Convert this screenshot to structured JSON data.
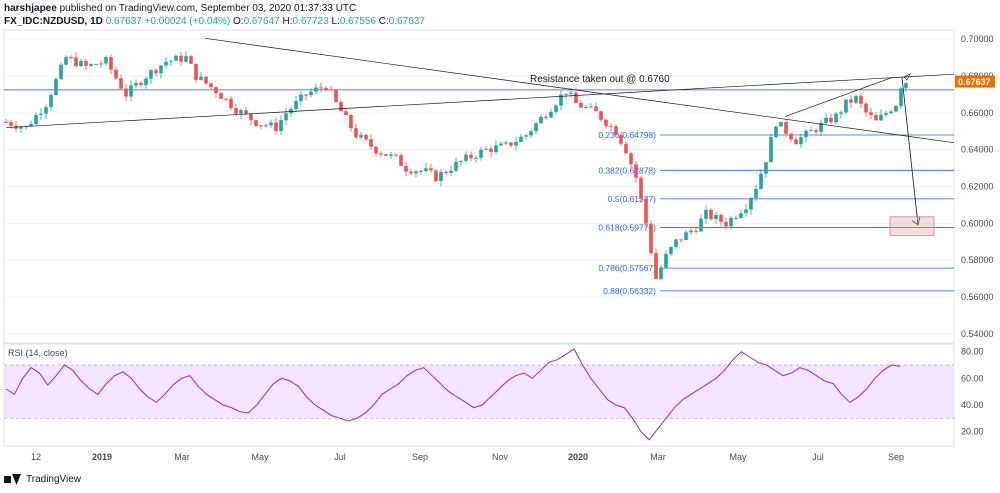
{
  "header": {
    "author": "harshjapee",
    "published_text": "published on TradingView.com, September 03, 2020 01:37:33 UTC",
    "symbol": "FX_IDC:NZDUSD, 1D",
    "last": "0.67637",
    "change": "+0.00024 (+0.04%)",
    "o_label": "O:",
    "o_value": "0.67647",
    "h_label": "H:",
    "h_value": "0.67723",
    "l_label": "L:",
    "l_value": "0.67556",
    "c_label": "C:",
    "c_value": "0.67637"
  },
  "footer": {
    "brand": "TradingView"
  },
  "colors": {
    "up": "#26a69a",
    "down": "#ef5350",
    "fib": "#2962ff",
    "rsi": "#9c27b0",
    "rsi_band": "#f3e5ff",
    "price_label": "#ef6c00"
  },
  "chart_data": [
    {
      "type": "candlestick",
      "ylim": [
        0.535,
        0.705
      ],
      "y_ticks": [
        "0.70000",
        "0.68000",
        "0.66000",
        "0.64000",
        "0.62000",
        "0.60000",
        "0.58000",
        "0.56000",
        "0.54000"
      ],
      "x_ticks": [
        "12",
        "2019",
        "Mar",
        "May",
        "Jul",
        "Sep",
        "Nov",
        "2020",
        "Mar",
        "May",
        "Jul",
        "Sep"
      ],
      "last_price_label": "0.67637",
      "annotation": "Resistance taken out @ 0.6760",
      "fib_levels": [
        {
          "label": "0.236(0.64798)",
          "value": 0.64798
        },
        {
          "label": "0.382(0.62878)",
          "value": 0.62878
        },
        {
          "label": "0.5(0.61327)",
          "value": 0.61327
        },
        {
          "label": "0.618(0.59776)",
          "value": 0.59776
        },
        {
          "label": "0.786(0.57567)",
          "value": 0.57567
        },
        {
          "label": "0.88(0.56332)",
          "value": 0.56332
        }
      ],
      "horizontal_line": 0.6725,
      "close_path": [
        [
          0,
          0.655
        ],
        [
          4,
          0.652
        ],
        [
          8,
          0.665
        ],
        [
          12,
          0.69
        ],
        [
          16,
          0.685
        ],
        [
          20,
          0.688
        ],
        [
          24,
          0.67
        ],
        [
          28,
          0.68
        ],
        [
          32,
          0.688
        ],
        [
          36,
          0.69
        ],
        [
          38,
          0.68
        ],
        [
          42,
          0.672
        ],
        [
          46,
          0.662
        ],
        [
          50,
          0.655
        ],
        [
          54,
          0.652
        ],
        [
          56,
          0.66
        ],
        [
          60,
          0.67
        ],
        [
          64,
          0.675
        ],
        [
          66,
          0.665
        ],
        [
          70,
          0.648
        ],
        [
          74,
          0.64
        ],
        [
          78,
          0.635
        ],
        [
          80,
          0.63
        ],
        [
          84,
          0.628
        ],
        [
          86,
          0.625
        ],
        [
          90,
          0.632
        ],
        [
          92,
          0.635
        ],
        [
          96,
          0.64
        ],
        [
          100,
          0.642
        ],
        [
          104,
          0.648
        ],
        [
          108,
          0.66
        ],
        [
          112,
          0.672
        ],
        [
          114,
          0.665
        ],
        [
          118,
          0.66
        ],
        [
          122,
          0.65
        ],
        [
          124,
          0.64
        ],
        [
          126,
          0.625
        ],
        [
          128,
          0.6
        ],
        [
          130,
          0.57
        ],
        [
          132,
          0.582
        ],
        [
          134,
          0.59
        ],
        [
          138,
          0.598
        ],
        [
          140,
          0.605
        ],
        [
          144,
          0.6
        ],
        [
          148,
          0.61
        ],
        [
          150,
          0.62
        ],
        [
          152,
          0.635
        ],
        [
          154,
          0.655
        ],
        [
          156,
          0.65
        ],
        [
          158,
          0.645
        ],
        [
          160,
          0.648
        ],
        [
          164,
          0.655
        ],
        [
          166,
          0.658
        ],
        [
          168,
          0.665
        ],
        [
          170,
          0.668
        ],
        [
          172,
          0.66
        ],
        [
          174,
          0.655
        ],
        [
          176,
          0.66
        ],
        [
          178,
          0.665
        ],
        [
          179,
          0.675
        ],
        [
          180,
          0.677
        ]
      ]
    },
    {
      "type": "line",
      "title": "RSI (14, close)",
      "ylim": [
        10,
        85
      ],
      "y_ticks": [
        "80.00",
        "60.00",
        "40.00",
        "20.00"
      ],
      "band": [
        30,
        70
      ],
      "values": [
        52,
        48,
        60,
        68,
        64,
        55,
        62,
        70,
        66,
        58,
        52,
        48,
        56,
        62,
        65,
        60,
        52,
        46,
        42,
        48,
        55,
        60,
        62,
        54,
        48,
        44,
        40,
        38,
        35,
        34,
        40,
        48,
        56,
        60,
        58,
        54,
        46,
        40,
        36,
        32,
        30,
        28,
        30,
        34,
        40,
        48,
        52,
        56,
        62,
        66,
        68,
        62,
        56,
        50,
        46,
        42,
        38,
        40,
        46,
        52,
        58,
        62,
        64,
        60,
        66,
        72,
        74,
        78,
        82,
        70,
        60,
        52,
        44,
        40,
        38,
        30,
        20,
        14,
        22,
        30,
        38,
        44,
        48,
        52,
        56,
        60,
        66,
        74,
        80,
        76,
        72,
        70,
        66,
        62,
        64,
        68,
        66,
        62,
        58,
        56,
        48,
        42,
        46,
        52,
        60,
        66,
        70,
        69
      ]
    }
  ]
}
